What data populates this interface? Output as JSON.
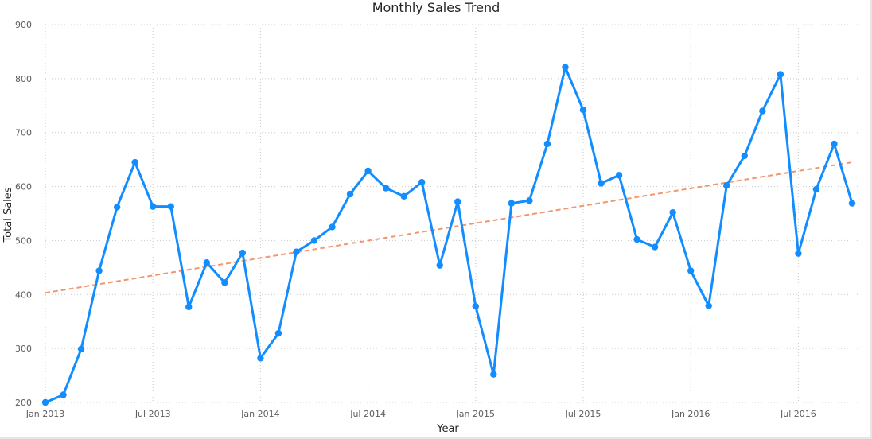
{
  "chart_data": {
    "type": "line",
    "title": "Monthly Sales Trend",
    "xlabel": "Year",
    "ylabel": "Total Sales",
    "ylim": [
      200,
      900
    ],
    "yticks": [
      200,
      300,
      400,
      500,
      600,
      700,
      800,
      900
    ],
    "xlim": [
      "2013-01",
      "2016-10"
    ],
    "xticks": [
      {
        "date": "2013-01",
        "label": "Jan 2013"
      },
      {
        "date": "2013-07",
        "label": "Jul 2013"
      },
      {
        "date": "2014-01",
        "label": "Jan 2014"
      },
      {
        "date": "2014-07",
        "label": "Jul 2014"
      },
      {
        "date": "2015-01",
        "label": "Jan 2015"
      },
      {
        "date": "2015-07",
        "label": "Jul 2015"
      },
      {
        "date": "2016-01",
        "label": "Jan 2016"
      },
      {
        "date": "2016-07",
        "label": "Jul 2016"
      }
    ],
    "grid": true,
    "series": [
      {
        "color": "#118dff",
        "x": [
          "2013-01",
          "2013-02",
          "2013-03",
          "2013-04",
          "2013-05",
          "2013-06",
          "2013-07",
          "2013-08",
          "2013-09",
          "2013-10",
          "2013-11",
          "2013-12",
          "2014-01",
          "2014-02",
          "2014-03",
          "2014-04",
          "2014-05",
          "2014-06",
          "2014-07",
          "2014-08",
          "2014-09",
          "2014-10",
          "2014-11",
          "2014-12",
          "2015-01",
          "2015-02",
          "2015-03",
          "2015-04",
          "2015-05",
          "2015-06",
          "2015-07",
          "2015-08",
          "2015-09",
          "2015-10",
          "2015-11",
          "2015-12",
          "2016-01",
          "2016-02",
          "2016-03",
          "2016-04",
          "2016-05",
          "2016-06",
          "2016-07",
          "2016-08",
          "2016-09",
          "2016-10"
        ],
        "values": [
          200,
          214,
          299,
          444,
          562,
          645,
          563,
          563,
          377,
          459,
          422,
          477,
          282,
          328,
          479,
          500,
          525,
          586,
          629,
          597,
          582,
          608,
          454,
          572,
          378,
          252,
          569,
          574,
          679,
          821,
          742,
          606,
          621,
          502,
          488,
          552,
          444,
          379,
          602,
          657,
          740,
          808,
          476,
          595,
          679,
          569
        ]
      }
    ],
    "trend_line": {
      "color": "#f2966b",
      "style": "dashed",
      "start": {
        "x": "2013-01",
        "y": 403
      },
      "end": {
        "x": "2016-10",
        "y": 645
      }
    }
  }
}
